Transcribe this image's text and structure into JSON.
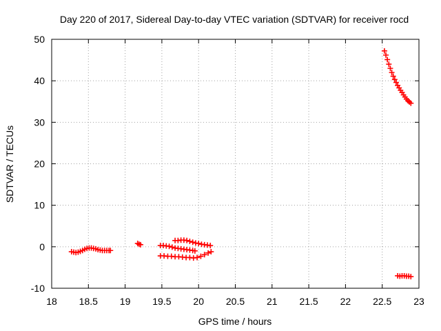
{
  "chart_data": {
    "type": "scatter",
    "title": "Day 220 of 2017, Sidereal Day-to-day VTEC variation (SDTVAR) for receiver rocd",
    "xlabel": "GPS time / hours",
    "ylabel": "SDTVAR / TECUs",
    "xlim": [
      18,
      23
    ],
    "ylim": [
      -10,
      50
    ],
    "xticks": [
      "18",
      "18.5",
      "19",
      "19.5",
      "20",
      "20.5",
      "21",
      "21.5",
      "22",
      "22.5",
      "23"
    ],
    "yticks": [
      "-10",
      "0",
      "10",
      "20",
      "30",
      "40",
      "50"
    ],
    "grid": true,
    "marker_color": "#ff0000",
    "marker": "plus",
    "series": [
      {
        "x": [
          18.27,
          18.3,
          18.33,
          18.36,
          18.39,
          18.42,
          18.45,
          18.48,
          18.51,
          18.54,
          18.57,
          18.6,
          18.63,
          18.66,
          18.69,
          18.72,
          18.75,
          18.78,
          18.8
        ],
        "y": [
          -1.2,
          -1.3,
          -1.4,
          -1.3,
          -1.1,
          -0.9,
          -0.6,
          -0.4,
          -0.3,
          -0.3,
          -0.4,
          -0.5,
          -0.7,
          -0.8,
          -0.9,
          -0.9,
          -0.9,
          -0.9,
          -0.9
        ]
      },
      {
        "x": [
          19.17,
          19.19,
          19.21
        ],
        "y": [
          0.8,
          0.6,
          0.5
        ]
      },
      {
        "x": [
          19.48,
          19.52,
          19.56,
          19.6,
          19.64,
          19.68,
          19.72,
          19.76,
          19.8,
          19.84,
          19.88,
          19.92,
          19.95
        ],
        "y": [
          0.3,
          0.3,
          0.2,
          0.1,
          -0.1,
          -0.3,
          -0.4,
          -0.5,
          -0.6,
          -0.7,
          -0.8,
          -0.9,
          -1.0
        ]
      },
      {
        "x": [
          19.68,
          19.72,
          19.76,
          19.8,
          19.84,
          19.88,
          19.92,
          19.96,
          20.0,
          20.04,
          20.08,
          20.12,
          20.16
        ],
        "y": [
          1.5,
          1.5,
          1.6,
          1.6,
          1.5,
          1.3,
          1.1,
          0.9,
          0.8,
          0.6,
          0.5,
          0.4,
          0.3
        ]
      },
      {
        "x": [
          19.48,
          19.53,
          19.58,
          19.63,
          19.68,
          19.73,
          19.78,
          19.83,
          19.88,
          19.93,
          19.98,
          20.03,
          20.08,
          20.13,
          20.17
        ],
        "y": [
          -2.2,
          -2.2,
          -2.3,
          -2.3,
          -2.4,
          -2.4,
          -2.5,
          -2.6,
          -2.6,
          -2.7,
          -2.6,
          -2.3,
          -1.9,
          -1.5,
          -1.2
        ]
      },
      {
        "x": [
          22.53,
          22.55,
          22.57,
          22.59,
          22.61,
          22.63,
          22.65,
          22.67,
          22.69,
          22.71,
          22.73,
          22.75,
          22.77,
          22.79,
          22.81,
          22.83,
          22.85,
          22.87,
          22.89
        ],
        "y": [
          47.2,
          46.2,
          45.1,
          44.0,
          43.0,
          42.0,
          41.1,
          40.3,
          39.6,
          38.9,
          38.3,
          37.7,
          37.2,
          36.6,
          36.1,
          35.6,
          35.2,
          34.9,
          34.6
        ]
      },
      {
        "x": [
          22.71,
          22.74,
          22.77,
          22.8,
          22.83,
          22.86,
          22.89
        ],
        "y": [
          -7.0,
          -7.1,
          -7.0,
          -7.0,
          -7.1,
          -7.1,
          -7.2
        ]
      }
    ]
  }
}
